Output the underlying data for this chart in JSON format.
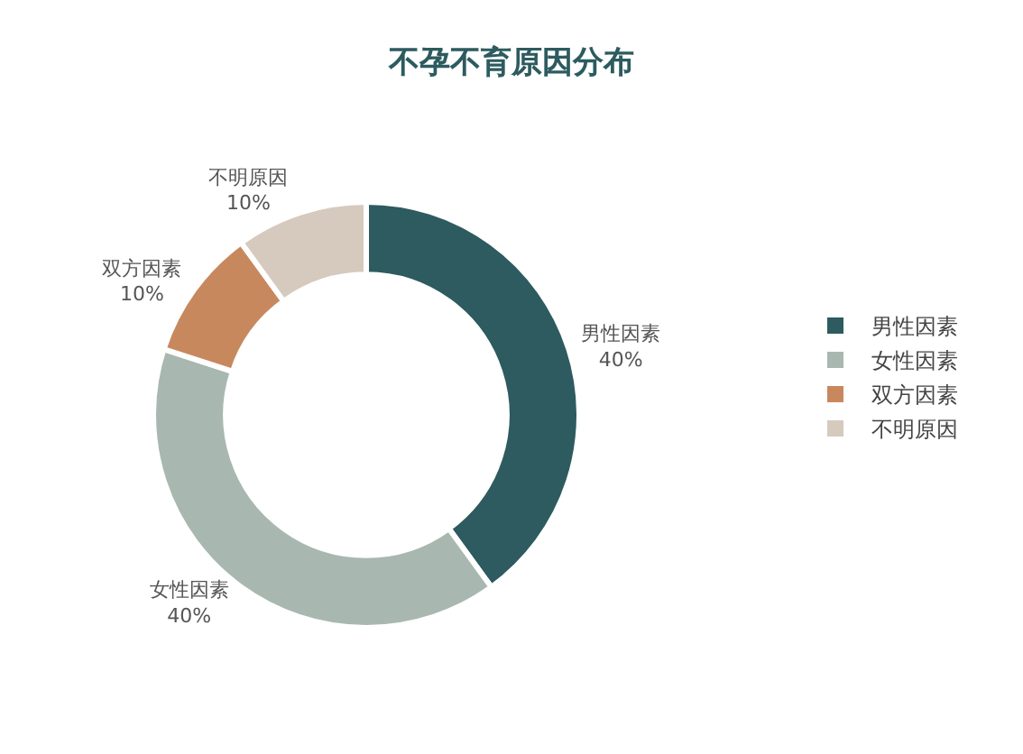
{
  "chart_data": {
    "type": "donut",
    "title": "不孕不育原因分布",
    "categories": [
      "男性因素",
      "女性因素",
      "双方因素",
      "不明原因"
    ],
    "values": [
      40,
      40,
      10,
      10
    ],
    "value_labels": [
      "40%",
      "40%",
      "10%",
      "10%"
    ],
    "colors": [
      "#2d5b5f",
      "#a8b8b0",
      "#c8885e",
      "#d6cabe"
    ],
    "legend": "right"
  }
}
